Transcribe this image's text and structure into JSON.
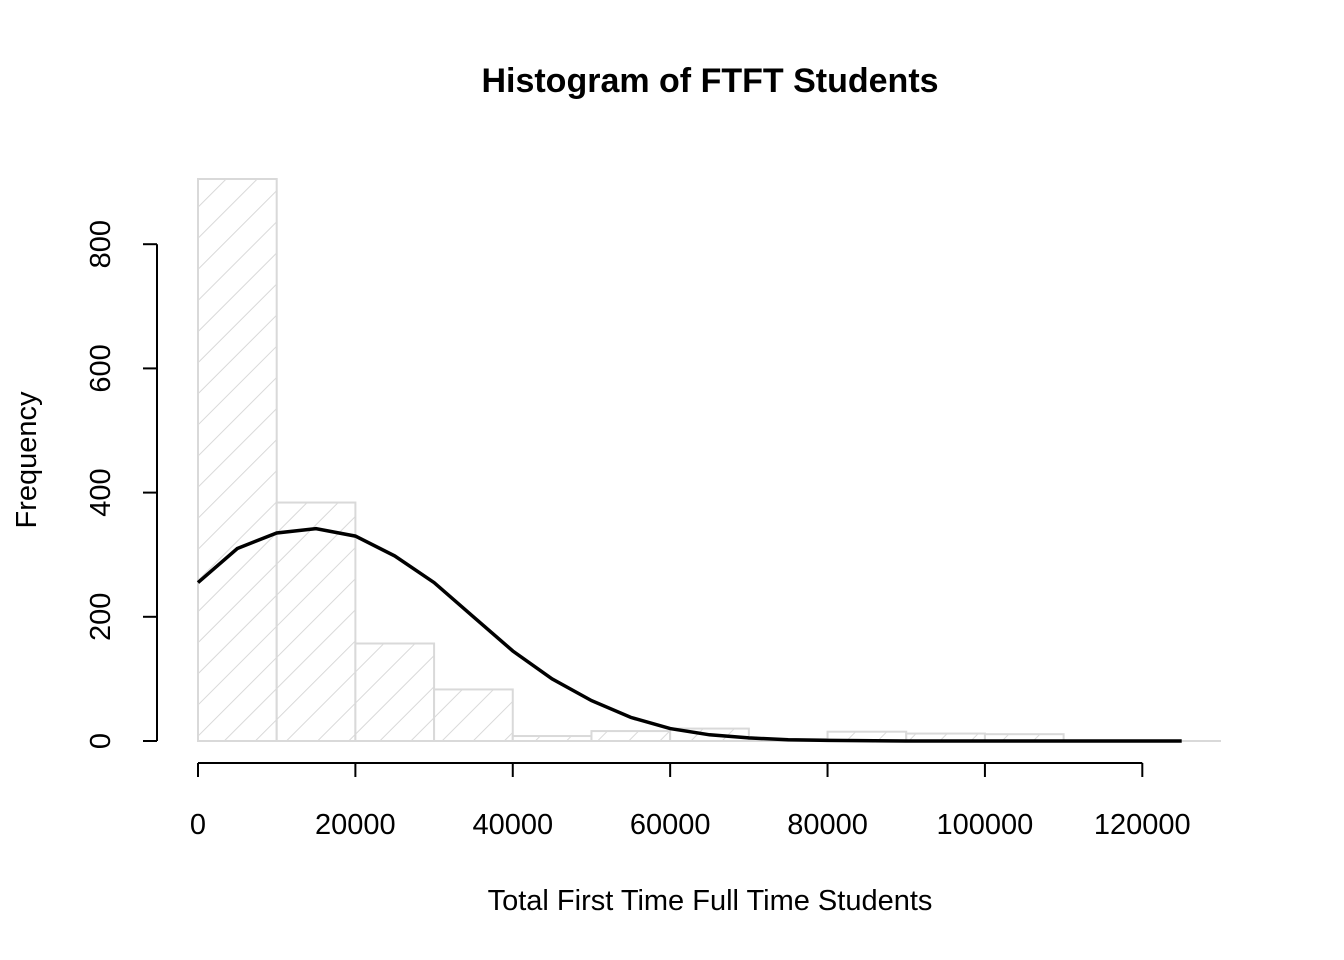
{
  "chart_data": {
    "type": "bar",
    "title": "Histogram of FTFT Students",
    "xlabel": "Total First Time Full Time Students",
    "ylabel": "Frequency",
    "bin_edges": [
      0,
      10000,
      20000,
      30000,
      40000,
      50000,
      60000,
      70000,
      80000,
      90000,
      100000,
      110000,
      120000,
      130000
    ],
    "values": [
      905,
      384,
      157,
      83,
      8,
      16,
      20,
      3,
      15,
      12,
      11,
      0,
      0
    ],
    "xlim": [
      0,
      130000
    ],
    "ylim": [
      0,
      905
    ],
    "x_ticks": [
      0,
      20000,
      40000,
      60000,
      80000,
      100000,
      120000
    ],
    "x_tick_labels": [
      "0",
      "20000",
      "40000",
      "60000",
      "80000",
      "100000",
      "120000"
    ],
    "y_ticks": [
      0,
      200,
      400,
      600,
      800
    ],
    "y_tick_labels": [
      "0",
      "200",
      "400",
      "600",
      "800"
    ],
    "bar_fill": "hatched",
    "bar_color": "#d9d9d9",
    "curve": {
      "type": "normal-density-overlay",
      "color": "#000000",
      "x": [
        0,
        5000,
        10000,
        15000,
        20000,
        25000,
        30000,
        35000,
        40000,
        45000,
        50000,
        55000,
        60000,
        65000,
        70000,
        75000,
        80000,
        90000,
        100000,
        110000,
        125000
      ],
      "y": [
        255,
        310,
        335,
        342,
        330,
        298,
        255,
        200,
        145,
        100,
        65,
        38,
        20,
        10,
        5,
        2,
        1,
        0,
        0,
        0,
        0
      ]
    },
    "grid": false,
    "legend": "none"
  }
}
